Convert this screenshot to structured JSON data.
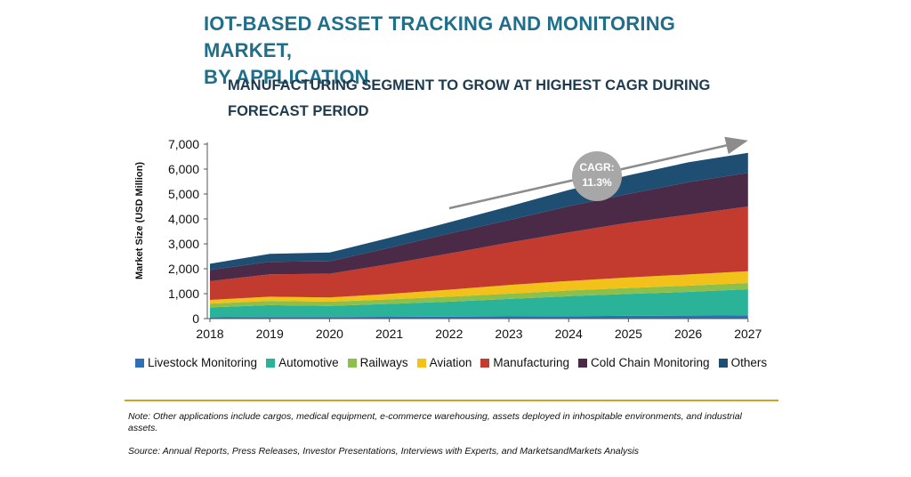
{
  "title_line1": "IOT-BASED ASSET TRACKING AND MONITORING MARKET,",
  "title_line2": "BY APPLICATION",
  "subtitle_line1": "MANUFACTURING SEGMENT TO GROW AT HIGHEST CAGR DURING",
  "subtitle_line2": "FORECAST PERIOD",
  "cagr_label": "CAGR:",
  "cagr_value": "11.3%",
  "note": "Note: Other applications include cargos, medical equipment, e-commerce warehousing, assets deployed in inhospitable environments, and industrial assets.",
  "source": "Source: Annual Reports, Press Releases, Investor Presentations, Interviews with Experts, and MarketsandMarkets Analysis",
  "chart_data": {
    "type": "area",
    "stacked": true,
    "ylabel": "Market Size (USD Million)",
    "ylim": [
      0,
      7000
    ],
    "yticks": [
      "0",
      "1,000",
      "2,000",
      "3,000",
      "4,000",
      "5,000",
      "6,000",
      "7,000"
    ],
    "categories": [
      "2018",
      "2019",
      "2020",
      "2021",
      "2022",
      "2023",
      "2024",
      "2025",
      "2026",
      "2027"
    ],
    "legend_position": "bottom",
    "grid": false,
    "series": [
      {
        "name": "Livestock Monitoring",
        "color": "#2f6fb5",
        "values": [
          50,
          60,
          60,
          70,
          80,
          90,
          100,
          110,
          120,
          130
        ]
      },
      {
        "name": "Automotive",
        "color": "#2bb39a",
        "values": [
          400,
          480,
          450,
          520,
          600,
          700,
          800,
          880,
          950,
          1050
        ]
      },
      {
        "name": "Railways",
        "color": "#8dc04a",
        "values": [
          150,
          170,
          170,
          180,
          200,
          210,
          230,
          240,
          250,
          250
        ]
      },
      {
        "name": "Aviation",
        "color": "#f2c21b",
        "values": [
          150,
          170,
          170,
          220,
          280,
          350,
          380,
          420,
          450,
          470
        ]
      },
      {
        "name": "Manufacturing",
        "color": "#c33a2e",
        "values": [
          750,
          900,
          950,
          1200,
          1450,
          1700,
          1950,
          2200,
          2400,
          2600
        ]
      },
      {
        "name": "Cold Chain Monitoring",
        "color": "#4b2a48",
        "values": [
          450,
          500,
          500,
          650,
          800,
          900,
          1050,
          1150,
          1300,
          1350
        ]
      },
      {
        "name": "Others",
        "color": "#1f4e73",
        "values": [
          250,
          320,
          350,
          400,
          450,
          550,
          650,
          750,
          800,
          800
        ]
      }
    ]
  }
}
